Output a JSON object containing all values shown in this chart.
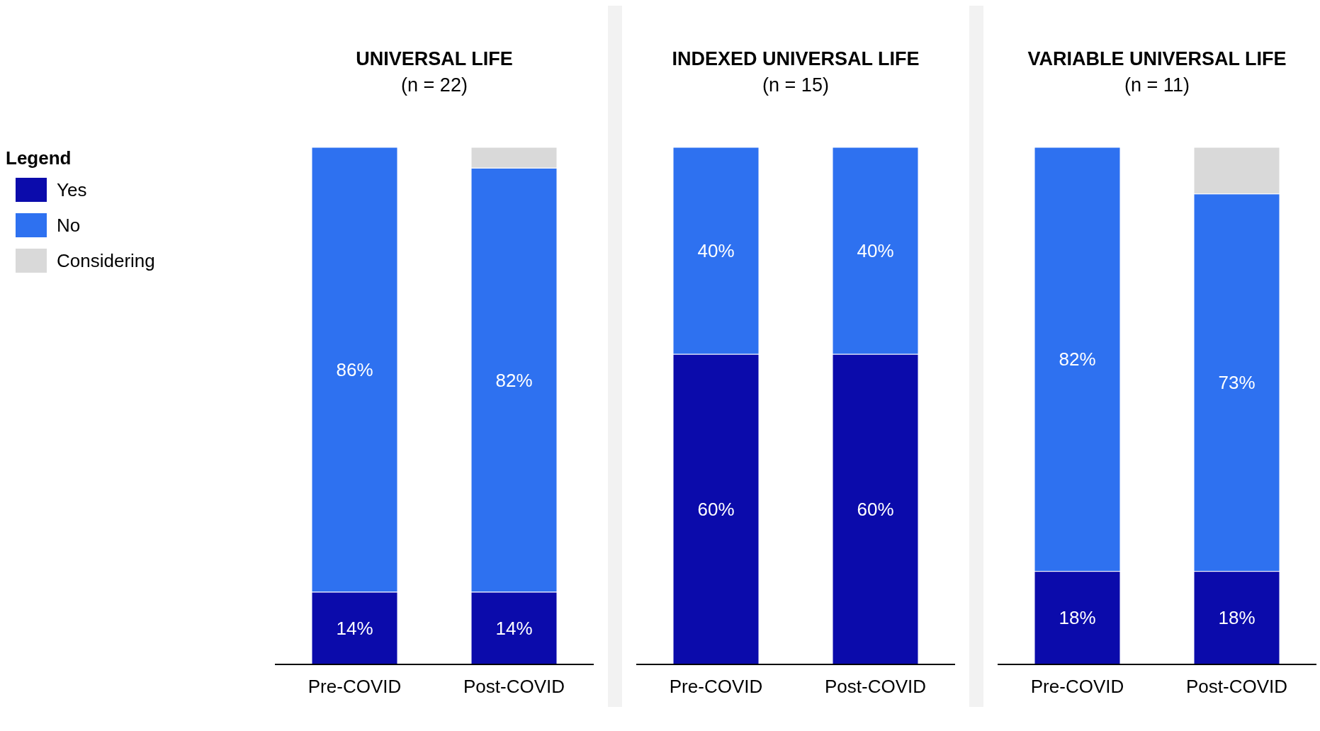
{
  "chart_data": [
    {
      "type": "bar",
      "title": "UNIVERSAL LIFE",
      "subtitle": "(n = 22)",
      "categories": [
        "Pre-COVID",
        "Post-COVID"
      ],
      "stacked": true,
      "ylim": [
        0,
        100
      ],
      "tick_labels": "x",
      "legend": "left",
      "legend_title": "Legend",
      "series": [
        {
          "name": "Yes",
          "color": "#0b0bab",
          "values": [
            14,
            14
          ],
          "value_labels": [
            "14%",
            "14%"
          ]
        },
        {
          "name": "No",
          "color": "#2e71f0",
          "values": [
            86,
            82
          ],
          "value_labels": [
            "86%",
            "82%"
          ]
        },
        {
          "name": "Considering",
          "color": "#d9d9d9",
          "values": [
            0,
            4
          ],
          "value_labels": [
            null,
            null
          ]
        }
      ]
    },
    {
      "type": "bar",
      "title": "INDEXED UNIVERSAL LIFE",
      "subtitle": "(n = 15)",
      "categories": [
        "Pre-COVID",
        "Post-COVID"
      ],
      "stacked": true,
      "ylim": [
        0,
        100
      ],
      "tick_labels": "x",
      "series": [
        {
          "color": "#0b0bab",
          "values": [
            60,
            60
          ],
          "value_labels": [
            "60%",
            "60%"
          ]
        },
        {
          "color": "#2e71f0",
          "values": [
            40,
            40
          ],
          "value_labels": [
            "40%",
            "40%"
          ]
        },
        {
          "color": "#d9d9d9",
          "values": [
            0,
            0
          ],
          "value_labels": [
            null,
            null
          ]
        }
      ]
    },
    {
      "type": "bar",
      "title": "VARIABLE UNIVERSAL LIFE",
      "subtitle": "(n = 11)",
      "categories": [
        "Pre-COVID",
        "Post-COVID"
      ],
      "stacked": true,
      "ylim": [
        0,
        100
      ],
      "tick_labels": "x",
      "series": [
        {
          "color": "#0b0bab",
          "values": [
            18,
            18
          ],
          "value_labels": [
            "18%",
            "18%"
          ]
        },
        {
          "color": "#2e71f0",
          "values": [
            82,
            73
          ],
          "value_labels": [
            "82%",
            "73%"
          ]
        },
        {
          "color": "#d9d9d9",
          "values": [
            0,
            9
          ],
          "value_labels": [
            null,
            null
          ]
        }
      ]
    }
  ]
}
